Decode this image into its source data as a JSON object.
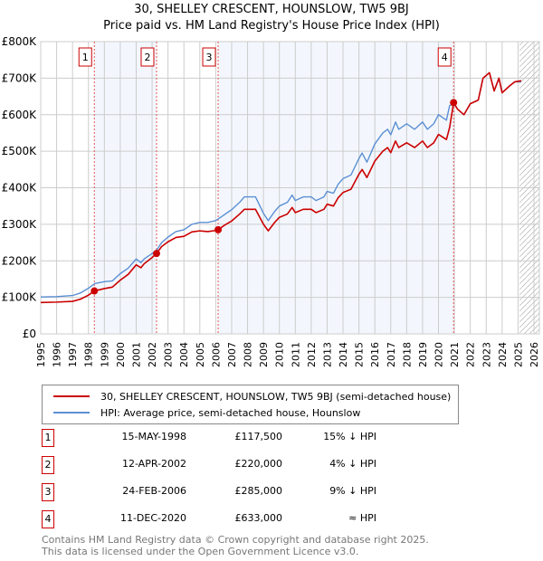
{
  "chart_data": {
    "type": "line",
    "title": "30, SHELLEY CRESCENT, HOUNSLOW, TW5 9BJ",
    "subtitle": "Price paid vs. HM Land Registry's House Price Index (HPI)",
    "xlim": [
      1995,
      2026
    ],
    "ylim": [
      0,
      800000
    ],
    "x_ticks": [
      "1995",
      "1996",
      "1997",
      "1998",
      "1999",
      "2000",
      "2001",
      "2002",
      "2003",
      "2004",
      "2005",
      "2006",
      "2007",
      "2008",
      "2009",
      "2010",
      "2011",
      "2012",
      "2013",
      "2014",
      "2015",
      "2016",
      "2017",
      "2018",
      "2019",
      "2020",
      "2021",
      "2022",
      "2023",
      "2024",
      "2025",
      "2026"
    ],
    "y_ticks": [
      {
        "v": 0,
        "label": "£0"
      },
      {
        "v": 100000,
        "label": "£100K"
      },
      {
        "v": 200000,
        "label": "£200K"
      },
      {
        "v": 300000,
        "label": "£300K"
      },
      {
        "v": 400000,
        "label": "£400K"
      },
      {
        "v": 500000,
        "label": "£500K"
      },
      {
        "v": 600000,
        "label": "£600K"
      },
      {
        "v": 700000,
        "label": "£700K"
      },
      {
        "v": 800000,
        "label": "£800K"
      }
    ],
    "grid": true,
    "forecast_from": 2025.1,
    "series": [
      {
        "name": "30, SHELLEY CRESCENT, HOUNSLOW, TW5 9BJ (semi-detached house)",
        "color": "#cc0000",
        "x": [
          1995,
          1996,
          1997,
          1997.5,
          1998,
          1998.37,
          1999,
          1999.5,
          2000,
          2000.5,
          2001,
          2001.3,
          2001.5,
          2002,
          2002.28,
          2002.6,
          2003,
          2003.5,
          2004,
          2004.5,
          2005,
          2005.5,
          2006,
          2006.15,
          2006.5,
          2007,
          2007.5,
          2007.8,
          2008.5,
          2009,
          2009.3,
          2009.7,
          2010,
          2010.5,
          2010.8,
          2011,
          2011.5,
          2012,
          2012.3,
          2012.8,
          2013,
          2013.4,
          2013.7,
          2014,
          2014.5,
          2015,
          2015.2,
          2015.5,
          2016,
          2016.5,
          2016.8,
          2017,
          2017.3,
          2017.5,
          2018,
          2018.5,
          2019,
          2019.3,
          2019.7,
          2020,
          2020.5,
          2020.7,
          2020.95,
          2021.2,
          2021.6,
          2022,
          2022.5,
          2022.8,
          2023.2,
          2023.5,
          2023.8,
          2024,
          2024.5,
          2024.8,
          2025.2
        ],
        "y": [
          86000,
          87000,
          89000,
          95000,
          106000,
          117500,
          124000,
          128000,
          147000,
          163000,
          189000,
          181000,
          192000,
          209000,
          220000,
          239000,
          252000,
          264000,
          267000,
          279000,
          282000,
          280000,
          283000,
          285000,
          296000,
          309000,
          328000,
          341000,
          341000,
          300000,
          282000,
          305000,
          319000,
          328000,
          346000,
          332000,
          341000,
          341000,
          332000,
          341000,
          355000,
          350000,
          373000,
          387000,
          396000,
          437000,
          450000,
          428000,
          473000,
          500000,
          510000,
          496000,
          528000,
          510000,
          523000,
          510000,
          528000,
          510000,
          523000,
          546000,
          532000,
          565000,
          633000,
          615000,
          600000,
          630000,
          640000,
          700000,
          715000,
          665000,
          700000,
          660000,
          680000,
          690000,
          693000
        ]
      },
      {
        "name": "HPI: Average price, semi-detached house, Hounslow",
        "color": "#5b8fd4",
        "x": [
          1995,
          1996,
          1997,
          1997.5,
          1998,
          1998.4,
          1999,
          1999.5,
          2000,
          2000.5,
          2001,
          2001.3,
          2001.5,
          2002,
          2002.3,
          2002.6,
          2003,
          2003.5,
          2004,
          2004.5,
          2005,
          2005.5,
          2006,
          2006.5,
          2007,
          2007.5,
          2007.8,
          2008.5,
          2009,
          2009.3,
          2009.7,
          2010,
          2010.5,
          2010.8,
          2011,
          2011.5,
          2012,
          2012.3,
          2012.8,
          2013,
          2013.4,
          2013.7,
          2014,
          2014.5,
          2015,
          2015.2,
          2015.5,
          2016,
          2016.5,
          2016.8,
          2017,
          2017.3,
          2017.5,
          2018,
          2018.5,
          2019,
          2019.3,
          2019.7,
          2020,
          2020.5,
          2020.7,
          2021,
          2021.2,
          2021.6,
          2022,
          2022.5,
          2022.8,
          2023.2,
          2023.5,
          2023.8,
          2024,
          2024.5,
          2024.8,
          2025.2
        ],
        "y": [
          101000,
          102000,
          105000,
          112000,
          125000,
          138000,
          143000,
          145000,
          165000,
          180000,
          205000,
          195000,
          205000,
          220000,
          230000,
          250000,
          265000,
          280000,
          285000,
          300000,
          305000,
          305000,
          310000,
          325000,
          340000,
          360000,
          375000,
          375000,
          330000,
          310000,
          335000,
          350000,
          360000,
          380000,
          365000,
          375000,
          375000,
          365000,
          375000,
          390000,
          385000,
          410000,
          425000,
          435000,
          480000,
          495000,
          470000,
          520000,
          550000,
          560000,
          545000,
          580000,
          560000,
          575000,
          560000,
          580000,
          560000,
          575000,
          600000,
          585000,
          625000,
          630000,
          615000,
          600000,
          630000,
          640000,
          700000,
          715000,
          665000,
          700000,
          660000,
          680000,
          690000,
          690000
        ]
      }
    ],
    "sales": [
      {
        "id": "1",
        "x": 1998.37,
        "price": 117500,
        "date": "15-MAY-1998",
        "price_label": "£117,500",
        "rel": "15% ↓ HPI"
      },
      {
        "id": "2",
        "x": 2002.28,
        "price": 220000,
        "date": "12-APR-2002",
        "price_label": "£220,000",
        "rel": "4% ↓ HPI"
      },
      {
        "id": "3",
        "x": 2006.15,
        "price": 285000,
        "date": "24-FEB-2006",
        "price_label": "£285,000",
        "rel": "9% ↓ HPI"
      },
      {
        "id": "4",
        "x": 2020.95,
        "price": 633000,
        "date": "11-DEC-2020",
        "price_label": "£633,000",
        "rel": "≈ HPI"
      }
    ]
  },
  "footer": {
    "line1": "Contains HM Land Registry data © Crown copyright and database right 2025.",
    "line2": "This data is licensed under the Open Government Licence v3.0."
  }
}
